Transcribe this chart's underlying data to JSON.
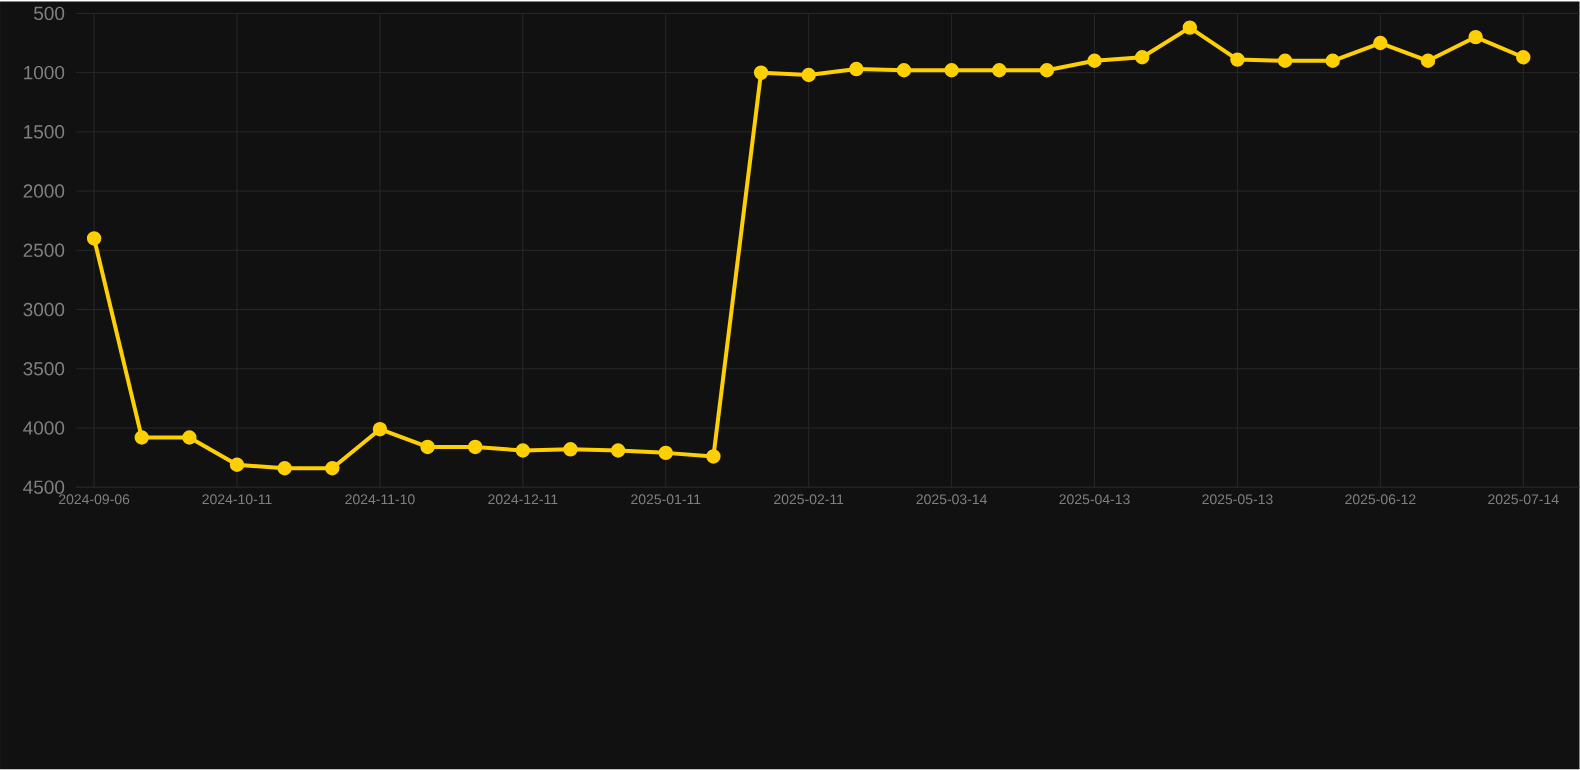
{
  "chart_data": {
    "type": "line",
    "categories": [
      "2024-09-06",
      null,
      null,
      "2024-10-11",
      null,
      null,
      "2024-11-10",
      null,
      null,
      "2024-12-11",
      null,
      null,
      "2025-01-11",
      null,
      null,
      "2025-02-11",
      null,
      null,
      "2025-03-14",
      null,
      null,
      "2025-04-13",
      null,
      null,
      "2025-05-13",
      null,
      null,
      "2025-06-12",
      null,
      null,
      "2025-07-14"
    ],
    "series": [
      {
        "color": "#ffd000",
        "values": [
          2400,
          4080,
          4080,
          4310,
          4340,
          4340,
          4010,
          4160,
          4160,
          4190,
          4180,
          4190,
          4210,
          4240,
          1000,
          1020,
          970,
          980,
          980,
          980,
          980,
          900,
          870,
          620,
          890,
          900,
          900,
          750,
          900,
          700,
          870
        ]
      }
    ],
    "ylim": [
      4500,
      500
    ],
    "yticks": [
      500,
      1000,
      1500,
      2000,
      2500,
      3000,
      3500,
      4000,
      4500
    ],
    "grid": true,
    "marker": "circle",
    "line_style": "solid"
  }
}
